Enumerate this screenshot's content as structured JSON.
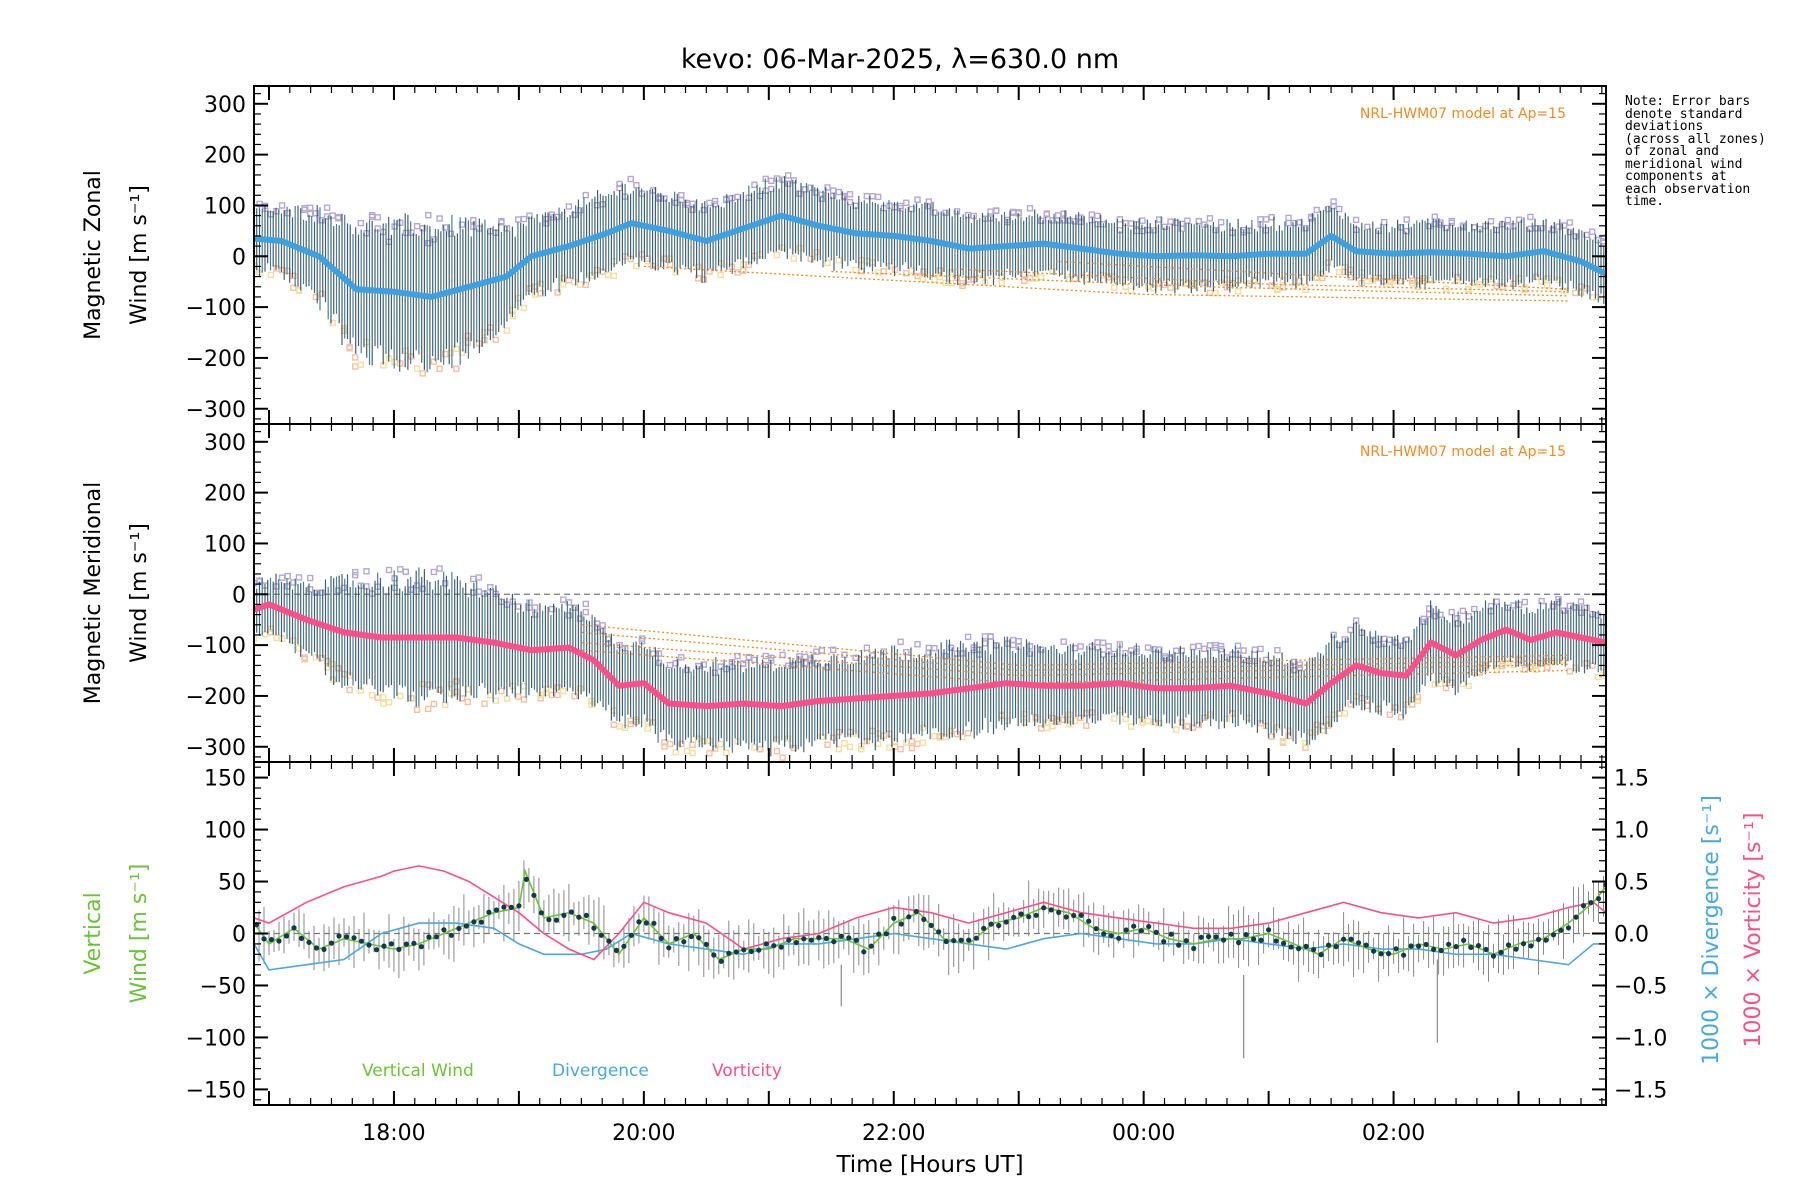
{
  "title": "kevo: 06-Mar-2025, λ=630.0 nm",
  "note": {
    "lines": [
      "Note: Error bars",
      "denote standard",
      "deviations",
      "(across all zones)",
      "of zonal and",
      "meridional wind",
      "components at",
      "each observation",
      "time."
    ]
  },
  "colors": {
    "zonal_mean": "#3fa0e0",
    "meridional_mean": "#ff4f8b",
    "vertical": "#6cc33a",
    "divergence": "#4aa8e0",
    "vorticity": "#ff4f8b",
    "model": "#f08a24",
    "error_bar": "#2f4f5f",
    "scatter_lavender": "#b3a8d8",
    "scatter_peach": "#f7c0a0",
    "scatter_yellow": "#f5dfa0",
    "vertical_marker": "#123a4a",
    "vertical_errbar": "#888888"
  },
  "xaxis": {
    "label": "Time [Hours UT]",
    "range_hours_utc": [
      16.88,
      27.7
    ],
    "ticks": [
      {
        "value": 18,
        "label": "18:00"
      },
      {
        "value": 20,
        "label": "20:00"
      },
      {
        "value": 22,
        "label": "22:00"
      },
      {
        "value": 24,
        "label": "00:00"
      },
      {
        "value": 26,
        "label": "02:00"
      }
    ]
  },
  "chart_data": [
    {
      "type": "line",
      "name": "zonal",
      "ylabel_line1": "Magnetic Zonal",
      "ylabel_line2": "Wind [m s⁻¹]",
      "ylim": [
        -330,
        335
      ],
      "yticks": [
        {
          "value": 300,
          "label": "300"
        },
        {
          "value": 200,
          "label": "200"
        },
        {
          "value": 100,
          "label": "100"
        },
        {
          "value": 0,
          "label": "0"
        },
        {
          "value": -100,
          "label": "−100"
        },
        {
          "value": -200,
          "label": "−200"
        },
        {
          "value": -300,
          "label": "−300"
        }
      ],
      "model_label": "NRL-HWM07 model at Ap=15",
      "mean_wind": {
        "x": [
          16.88,
          17.1,
          17.4,
          17.7,
          18.0,
          18.3,
          18.6,
          18.9,
          19.1,
          19.4,
          19.7,
          19.9,
          20.2,
          20.5,
          20.8,
          21.1,
          21.4,
          21.7,
          22.0,
          22.3,
          22.6,
          22.9,
          23.2,
          23.5,
          23.8,
          24.1,
          24.4,
          24.7,
          25.0,
          25.3,
          25.5,
          25.7,
          26.0,
          26.3,
          26.6,
          26.9,
          27.2,
          27.5,
          27.7
        ],
        "y": [
          35,
          30,
          0,
          -65,
          -70,
          -80,
          -60,
          -40,
          0,
          20,
          45,
          65,
          50,
          30,
          55,
          80,
          60,
          45,
          40,
          30,
          15,
          20,
          25,
          15,
          5,
          0,
          2,
          0,
          5,
          5,
          40,
          10,
          5,
          8,
          5,
          0,
          10,
          -10,
          -35
        ],
        "spread": [
          60,
          60,
          90,
          130,
          130,
          140,
          125,
          90,
          70,
          75,
          75,
          75,
          70,
          70,
          70,
          70,
          70,
          65,
          65,
          65,
          65,
          60,
          60,
          60,
          60,
          65,
          65,
          60,
          60,
          60,
          60,
          55,
          55,
          60,
          60,
          60,
          60,
          60,
          60
        ]
      },
      "model": [
        {
          "x": [
            23.3,
            25.5,
            27.4
          ],
          "y": [
            -10,
            -40,
            -65
          ]
        },
        {
          "x": [
            22.5,
            25.0,
            27.4
          ],
          "y": [
            -25,
            -55,
            -70
          ]
        },
        {
          "x": [
            21.5,
            24.5,
            27.4
          ],
          "y": [
            -30,
            -60,
            -78
          ]
        },
        {
          "x": [
            20.0,
            24.0,
            27.4
          ],
          "y": [
            -20,
            -75,
            -88
          ]
        }
      ]
    },
    {
      "type": "line",
      "name": "meridional",
      "ylabel_line1": "Magnetic Meridional",
      "ylabel_line2": "Wind [m s⁻¹]",
      "ylim": [
        -330,
        335
      ],
      "yticks": [
        {
          "value": 300,
          "label": "300"
        },
        {
          "value": 200,
          "label": "200"
        },
        {
          "value": 100,
          "label": "100"
        },
        {
          "value": 0,
          "label": "0"
        },
        {
          "value": -100,
          "label": "−100"
        },
        {
          "value": -200,
          "label": "−200"
        },
        {
          "value": -300,
          "label": "−300"
        }
      ],
      "model_label": "NRL-HWM07 model at Ap=15",
      "mean_wind": {
        "x": [
          16.88,
          17.0,
          17.3,
          17.6,
          17.9,
          18.2,
          18.5,
          18.8,
          19.1,
          19.4,
          19.6,
          19.8,
          20.0,
          20.2,
          20.5,
          20.8,
          21.1,
          21.4,
          21.7,
          22.0,
          22.3,
          22.6,
          22.9,
          23.2,
          23.5,
          23.8,
          24.1,
          24.4,
          24.7,
          25.0,
          25.3,
          25.5,
          25.7,
          25.9,
          26.1,
          26.3,
          26.5,
          26.7,
          26.9,
          27.1,
          27.3,
          27.5,
          27.7
        ],
        "y": [
          -30,
          -20,
          -50,
          -75,
          -85,
          -85,
          -85,
          -95,
          -110,
          -105,
          -130,
          -180,
          -175,
          -215,
          -220,
          -215,
          -220,
          -210,
          -205,
          -200,
          -195,
          -185,
          -175,
          -180,
          -180,
          -175,
          -185,
          -185,
          -180,
          -195,
          -215,
          -175,
          -140,
          -155,
          -160,
          -95,
          -120,
          -90,
          -70,
          -90,
          -75,
          -85,
          -95
        ],
        "spread": [
          50,
          50,
          70,
          100,
          110,
          120,
          110,
          100,
          80,
          80,
          90,
          70,
          80,
          80,
          80,
          80,
          85,
          85,
          85,
          90,
          85,
          85,
          80,
          75,
          70,
          70,
          70,
          70,
          70,
          75,
          75,
          80,
          75,
          70,
          70,
          70,
          70,
          65,
          60,
          60,
          60,
          60,
          60
        ]
      },
      "model": [
        {
          "x": [
            19.5,
            23.0,
            27.4
          ],
          "y": [
            -60,
            -140,
            -120
          ]
        },
        {
          "x": [
            19.5,
            23.0,
            27.4
          ],
          "y": [
            -75,
            -150,
            -130
          ]
        },
        {
          "x": [
            19.5,
            23.0,
            27.4
          ],
          "y": [
            -95,
            -160,
            -138
          ]
        },
        {
          "x": [
            19.5,
            23.0,
            27.4
          ],
          "y": [
            -110,
            -175,
            -150
          ]
        }
      ]
    },
    {
      "type": "line",
      "name": "vertical",
      "ylabel_line1": "Vertical",
      "ylabel_line2": "Wind [m s⁻¹]",
      "ylim": [
        -165,
        165
      ],
      "yticks": [
        {
          "value": 150,
          "label": "150"
        },
        {
          "value": 100,
          "label": "100"
        },
        {
          "value": 50,
          "label": "50"
        },
        {
          "value": 0,
          "label": "0"
        },
        {
          "value": -50,
          "label": "−50"
        },
        {
          "value": -100,
          "label": "−100"
        },
        {
          "value": -150,
          "label": "−150"
        }
      ],
      "right_axis": {
        "ylim": [
          -1.65,
          1.65
        ],
        "ticks": [
          {
            "value": 1.5,
            "label": "1.5"
          },
          {
            "value": 1.0,
            "label": "1.0"
          },
          {
            "value": 0.5,
            "label": "0.5"
          },
          {
            "value": 0.0,
            "label": "0.0"
          },
          {
            "value": -0.5,
            "label": "−0.5"
          },
          {
            "value": -1.0,
            "label": "−1.0"
          },
          {
            "value": -1.5,
            "label": "−1.5"
          }
        ],
        "label_divergence": "1000 × Divergence [s⁻¹]",
        "label_vorticity": "1000 × Vorticity [s⁻¹]"
      },
      "legend": [
        "Vertical Wind",
        "Divergence",
        "Vorticity"
      ],
      "series": [
        {
          "name": "Vertical Wind",
          "x": [
            16.88,
            17.0,
            17.2,
            17.4,
            17.6,
            17.8,
            18.0,
            18.2,
            18.4,
            18.6,
            18.8,
            19.0,
            19.05,
            19.2,
            19.4,
            19.6,
            19.8,
            20.0,
            20.2,
            20.4,
            20.6,
            20.8,
            21.0,
            21.2,
            21.4,
            21.6,
            21.8,
            22.0,
            22.2,
            22.4,
            22.6,
            22.8,
            23.0,
            23.2,
            23.4,
            23.6,
            23.8,
            24.0,
            24.2,
            24.4,
            24.6,
            24.8,
            25.0,
            25.2,
            25.4,
            25.6,
            25.8,
            26.0,
            26.2,
            26.4,
            26.6,
            26.8,
            27.0,
            27.2,
            27.4,
            27.6,
            27.7
          ],
          "y": [
            10,
            -10,
            5,
            -15,
            -5,
            -10,
            -15,
            -10,
            0,
            10,
            20,
            25,
            60,
            15,
            20,
            10,
            -20,
            15,
            -10,
            0,
            -25,
            -15,
            -15,
            -5,
            -5,
            -5,
            -15,
            10,
            20,
            -5,
            -10,
            10,
            15,
            25,
            20,
            5,
            0,
            5,
            -5,
            -10,
            -5,
            -5,
            0,
            -10,
            -20,
            -5,
            -15,
            -20,
            -10,
            -15,
            -10,
            -20,
            -10,
            -5,
            10,
            30,
            45
          ]
        },
        {
          "name": "Divergence",
          "x": [
            16.88,
            17.0,
            17.3,
            17.6,
            17.9,
            18.2,
            18.5,
            18.8,
            19.0,
            19.2,
            19.5,
            19.7,
            19.9,
            20.2,
            20.5,
            20.8,
            21.1,
            21.4,
            21.7,
            22.0,
            22.3,
            22.6,
            22.9,
            23.2,
            23.5,
            23.8,
            24.1,
            24.4,
            24.7,
            25.0,
            25.3,
            25.6,
            25.9,
            26.2,
            26.5,
            26.8,
            27.1,
            27.4,
            27.6,
            27.7
          ],
          "y": [
            -0.1,
            -0.35,
            -0.3,
            -0.25,
            0.0,
            0.1,
            0.1,
            0.05,
            -0.1,
            -0.2,
            -0.2,
            -0.15,
            0.0,
            -0.1,
            -0.15,
            -0.2,
            -0.1,
            -0.1,
            -0.05,
            0.0,
            -0.05,
            -0.1,
            -0.15,
            -0.05,
            0.0,
            -0.05,
            -0.1,
            -0.1,
            -0.05,
            -0.1,
            -0.15,
            -0.1,
            -0.15,
            -0.15,
            -0.2,
            -0.2,
            -0.25,
            -0.3,
            -0.1,
            -0.1
          ]
        },
        {
          "name": "Vorticity",
          "x": [
            16.88,
            17.0,
            17.3,
            17.6,
            17.9,
            18.0,
            18.2,
            18.4,
            18.6,
            18.8,
            19.0,
            19.2,
            19.4,
            19.6,
            19.8,
            20.0,
            20.2,
            20.5,
            20.8,
            21.1,
            21.4,
            21.7,
            22.0,
            22.3,
            22.6,
            22.9,
            23.2,
            23.5,
            23.8,
            24.1,
            24.4,
            24.7,
            25.0,
            25.3,
            25.6,
            25.9,
            26.2,
            26.5,
            26.8,
            27.1,
            27.4,
            27.6,
            27.7
          ],
          "y": [
            0.15,
            0.1,
            0.3,
            0.45,
            0.55,
            0.6,
            0.65,
            0.6,
            0.5,
            0.35,
            0.2,
            0.0,
            -0.15,
            -0.25,
            0.0,
            0.3,
            0.2,
            0.1,
            -0.15,
            -0.05,
            0.0,
            0.15,
            0.25,
            0.2,
            0.1,
            0.2,
            0.3,
            0.2,
            0.15,
            0.1,
            0.05,
            0.05,
            0.1,
            0.2,
            0.3,
            0.2,
            0.15,
            0.2,
            0.1,
            0.15,
            0.25,
            0.3,
            0.2
          ]
        }
      ]
    }
  ]
}
